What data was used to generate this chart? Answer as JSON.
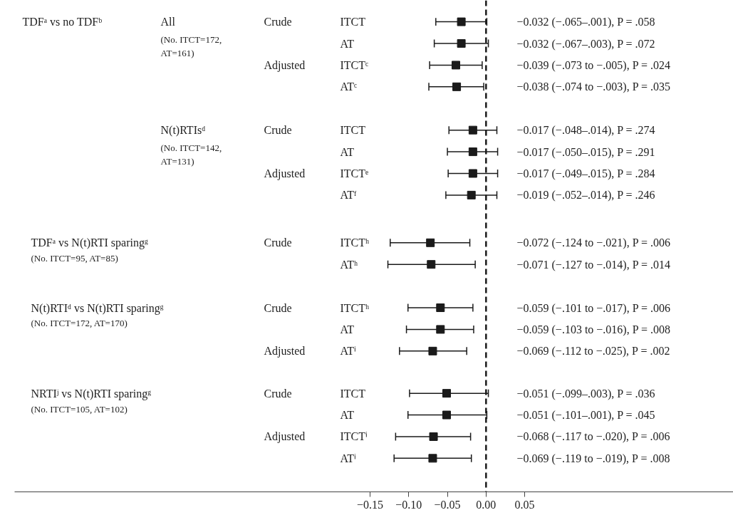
{
  "chart_data": {
    "type": "scatter",
    "orientation": "horizontal",
    "marker": "square",
    "categories": [
      "ITCT",
      "AT",
      "ITCTᶜ",
      "ATᶜ",
      "ITCT",
      "AT",
      "ITCTᵉ",
      "ATᶠ",
      "ITCTʰ",
      "ATʰ",
      "ITCTʰ",
      "AT",
      "ATⁱ",
      "ITCT",
      "AT",
      "ITCTⁱ",
      "ATⁱ"
    ],
    "values": [
      -0.032,
      -0.032,
      -0.039,
      -0.038,
      -0.017,
      -0.017,
      -0.017,
      -0.019,
      -0.072,
      -0.071,
      -0.059,
      -0.059,
      -0.069,
      -0.051,
      -0.051,
      -0.068,
      -0.069
    ],
    "errors": [
      [
        -0.065,
        0.001
      ],
      [
        -0.067,
        0.003
      ],
      [
        -0.073,
        -0.005
      ],
      [
        -0.074,
        -0.003
      ],
      [
        -0.048,
        0.014
      ],
      [
        -0.05,
        0.015
      ],
      [
        -0.049,
        0.015
      ],
      [
        -0.052,
        0.014
      ],
      [
        -0.124,
        -0.021
      ],
      [
        -0.127,
        -0.014
      ],
      [
        -0.101,
        -0.017
      ],
      [
        -0.103,
        -0.016
      ],
      [
        -0.112,
        -0.025
      ],
      [
        -0.099,
        0.003
      ],
      [
        -0.101,
        0.001
      ],
      [
        -0.117,
        -0.02
      ],
      [
        -0.119,
        -0.019
      ]
    ],
    "annotations": [
      "TDFᵃ vs no TDFᵇ",
      "All",
      "(No. ITCT=172,",
      "AT=161)",
      "N(t)RTIsᵈ",
      "(No. ITCT=142,",
      "AT=131)",
      "TDFᵃ vs N(t)RTI sparingᵍ",
      "(No. ITCT=95, AT=85)",
      "N(t)RTIᵈ vs N(t)RTI sparingᵍ",
      "(No. ITCT=172, AT=170)",
      "NRTIʲ vs N(t)RTI sparingᵍ",
      "(No. ITCT=105, AT=102)",
      "Crude",
      "Adjusted",
      "Crude",
      "Adjusted",
      "Crude",
      "Crude",
      "Adjusted",
      "Crude",
      "Adjusted",
      "−0.032 (−.065–.001), P = .058",
      "−0.032 (−.067–.003), P = .072",
      "−0.039 (−.073 to −.005), P = .024",
      "−0.038 (−.074 to −.003), P = .035",
      "−0.017 (−.048–.014), P = .274",
      "−0.017 (−.050–.015), P = .291",
      "−0.017 (−.049–.015), P = .284",
      "−0.019 (−.052–.014), P = .246",
      "−0.072 (−.124 to −.021), P = .006",
      "−0.071 (−.127 to −.014), P = .014",
      "−0.059 (−.101 to −.017), P = .006",
      "−0.059 (−.103 to −.016), P = .008",
      "−0.069 (−.112 to −.025), P = .002",
      "−0.051 (−.099–.003), P = .036",
      "−0.051 (−.101–.001), P = .045",
      "−0.068 (−.117 to −.020), P = .006",
      "−0.069 (−.119 to −.019), P = .008"
    ],
    "color": "#1a1a1a",
    "xlim": [
      -0.61,
      0.32
    ],
    "xticks": [
      {
        "value": -0.15,
        "label": "−0.15"
      },
      {
        "value": -0.1,
        "label": "−0.10"
      },
      {
        "value": -0.05,
        "label": "−0.05"
      },
      {
        "value": 0,
        "label": "0.00"
      },
      {
        "value": 0.05,
        "label": "0.05"
      }
    ],
    "ref_lines": [
      {
        "axis": "x",
        "value": 0,
        "line_style": "dashed",
        "color": "#1a1a1a"
      }
    ]
  }
}
